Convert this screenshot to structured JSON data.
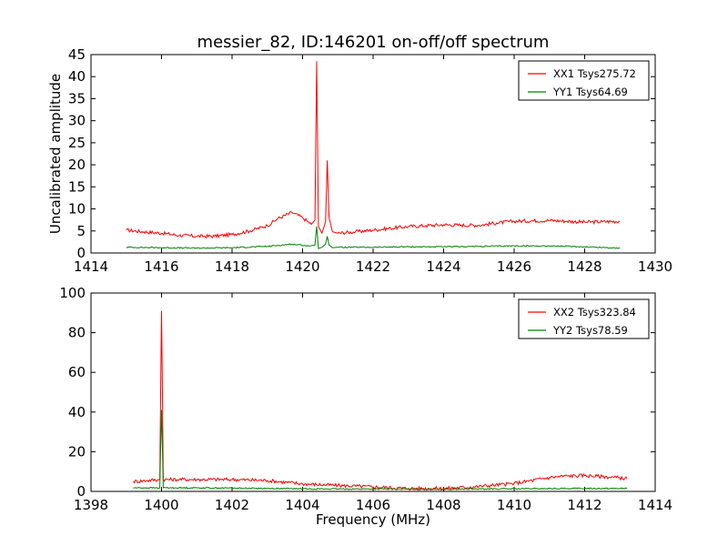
{
  "chart_data": [
    {
      "type": "line",
      "title": "messier_82, ID:146201 on-off/off spectrum",
      "xlabel": "",
      "ylabel": "Uncalibrated amplitude",
      "xlim": [
        1414,
        1430
      ],
      "ylim": [
        0,
        45
      ],
      "xticks": [
        1414,
        1416,
        1418,
        1420,
        1422,
        1424,
        1426,
        1428,
        1430
      ],
      "yticks": [
        0,
        5,
        10,
        15,
        20,
        25,
        30,
        35,
        40,
        45
      ],
      "legend_position": "top-right",
      "grid": false,
      "series": [
        {
          "name": "XX1 Tsys275.72",
          "color": "#ff0000",
          "x": [
            1415.0,
            1415.5,
            1416.0,
            1416.5,
            1417.0,
            1417.5,
            1418.0,
            1418.5,
            1419.0,
            1419.3,
            1419.7,
            1420.0,
            1420.25,
            1420.35,
            1420.4,
            1420.45,
            1420.55,
            1420.65,
            1420.7,
            1420.75,
            1420.85,
            1421.0,
            1421.5,
            1422.0,
            1422.5,
            1423.0,
            1423.5,
            1424.0,
            1424.5,
            1425.0,
            1425.5,
            1426.0,
            1426.5,
            1427.0,
            1427.5,
            1428.0,
            1428.5,
            1429.0
          ],
          "y": [
            5.2,
            4.8,
            4.5,
            4.0,
            3.8,
            3.8,
            4.2,
            5.0,
            6.2,
            7.8,
            9.2,
            8.0,
            6.5,
            7.5,
            43.5,
            6.0,
            4.5,
            7.0,
            21.0,
            8.0,
            4.8,
            4.5,
            4.8,
            5.2,
            5.6,
            6.0,
            6.2,
            6.4,
            6.3,
            6.3,
            6.8,
            7.2,
            7.3,
            7.4,
            7.2,
            7.0,
            7.1,
            7.2
          ]
        },
        {
          "name": "YY1 Tsys64.69",
          "color": "#008000",
          "x": [
            1415.0,
            1416.0,
            1417.0,
            1418.0,
            1419.0,
            1419.7,
            1420.2,
            1420.35,
            1420.4,
            1420.45,
            1420.55,
            1420.65,
            1420.7,
            1420.75,
            1420.85,
            1421.0,
            1422.0,
            1423.0,
            1424.0,
            1425.0,
            1426.0,
            1427.0,
            1428.0,
            1429.0
          ],
          "y": [
            1.3,
            1.2,
            1.1,
            1.2,
            1.5,
            2.0,
            1.6,
            1.8,
            6.0,
            1.0,
            1.3,
            2.0,
            3.8,
            1.8,
            1.2,
            1.3,
            1.3,
            1.4,
            1.4,
            1.5,
            1.6,
            1.6,
            1.4,
            1.1
          ]
        }
      ]
    },
    {
      "type": "line",
      "title": "",
      "xlabel": "Frequency (MHz)",
      "ylabel": "",
      "xlim": [
        1398,
        1414
      ],
      "ylim": [
        0,
        100
      ],
      "xticks": [
        1398,
        1400,
        1402,
        1404,
        1406,
        1408,
        1410,
        1412,
        1414
      ],
      "yticks": [
        0,
        20,
        40,
        60,
        80,
        100
      ],
      "legend_position": "top-right",
      "grid": false,
      "series": [
        {
          "name": "XX2 Tsys323.84",
          "color": "#ff0000",
          "x": [
            1399.2,
            1399.6,
            1399.95,
            1400.0,
            1400.05,
            1400.5,
            1401.0,
            1402.0,
            1403.0,
            1404.0,
            1405.0,
            1406.0,
            1407.0,
            1408.0,
            1409.0,
            1410.0,
            1410.5,
            1411.0,
            1411.5,
            1412.0,
            1412.5,
            1413.2
          ],
          "y": [
            5.0,
            5.5,
            6.0,
            91.0,
            6.0,
            6.0,
            6.0,
            6.0,
            5.5,
            3.8,
            3.0,
            2.3,
            1.5,
            1.5,
            2.5,
            4.0,
            5.5,
            7.0,
            7.8,
            8.0,
            7.5,
            6.5
          ]
        },
        {
          "name": "YY2 Tsys78.59",
          "color": "#008000",
          "x": [
            1399.2,
            1399.95,
            1400.0,
            1400.05,
            1401.0,
            1402.0,
            1403.0,
            1404.0,
            1405.0,
            1406.0,
            1407.0,
            1408.0,
            1409.0,
            1410.0,
            1411.0,
            1412.0,
            1413.2
          ],
          "y": [
            1.8,
            1.8,
            41.0,
            1.8,
            1.8,
            1.7,
            1.5,
            1.3,
            1.2,
            1.2,
            1.1,
            1.1,
            1.2,
            1.3,
            1.4,
            1.5,
            1.5
          ]
        }
      ]
    }
  ]
}
